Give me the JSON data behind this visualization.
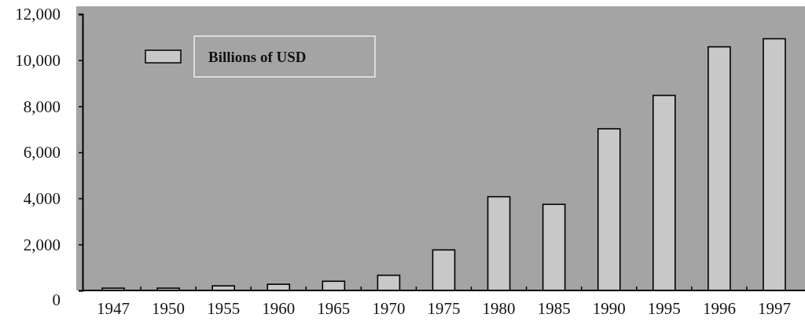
{
  "chart_data": {
    "type": "bar",
    "categories": [
      "1947",
      "1950",
      "1955",
      "1960",
      "1965",
      "1970",
      "1975",
      "1980",
      "1985",
      "1990",
      "1995",
      "1996",
      "1997"
    ],
    "series": [
      {
        "name": "Billions of USD",
        "color": "#c8c8c8",
        "values": [
          100,
          100,
          200,
          270,
          400,
          660,
          1760,
          4070,
          3740,
          7020,
          8470,
          10580,
          10930
        ]
      }
    ],
    "ylim": [
      0,
      12000
    ],
    "yticks": [
      {
        "value": 0,
        "label": "0"
      },
      {
        "value": 2000,
        "label": "2,000"
      },
      {
        "value": 4000,
        "label": "4,000"
      },
      {
        "value": 6000,
        "label": "6,000"
      },
      {
        "value": 8000,
        "label": "8,000"
      },
      {
        "value": 10000,
        "label": "10,000"
      },
      {
        "value": 12000,
        "label": "12,000"
      }
    ],
    "legend": "top left",
    "grid": false
  }
}
